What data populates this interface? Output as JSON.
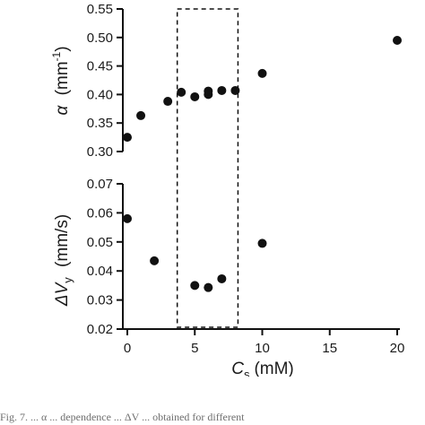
{
  "chart_data": [
    {
      "type": "scatter",
      "panel": "top",
      "ylabel": {
        "symbol": "α",
        "unit": "(mm",
        "exponent": "-1",
        "close": ")"
      },
      "ylim": [
        0.3,
        0.55
      ],
      "yticks": [
        "0.30",
        "0.35",
        "0.40",
        "0.45",
        "0.50",
        "0.55"
      ],
      "x": [
        0,
        1,
        3,
        4,
        5,
        6,
        6,
        7,
        8,
        10,
        20
      ],
      "y": [
        0.325,
        0.363,
        0.388,
        0.404,
        0.396,
        0.4,
        0.406,
        0.407,
        0.407,
        0.437,
        0.495
      ]
    },
    {
      "type": "scatter",
      "panel": "bottom",
      "ylabel": {
        "symbol": "ΔV",
        "subscript": "y",
        "unit": "(mm/s)"
      },
      "ylim": [
        0.02,
        0.07
      ],
      "yticks": [
        "0.02",
        "0.03",
        "0.04",
        "0.05",
        "0.06",
        "0.07"
      ],
      "x": [
        0,
        2,
        5,
        6,
        7,
        10
      ],
      "y": [
        0.058,
        0.0435,
        0.035,
        0.0343,
        0.0373,
        0.0495
      ]
    }
  ],
  "xaxis": {
    "label": {
      "symbol": "C",
      "subscript": "s",
      "unit": "(mM)"
    },
    "xlim": [
      0,
      20
    ],
    "xticks": [
      "0",
      "5",
      "10",
      "15",
      "20"
    ]
  },
  "highlight_box": {
    "x_range": [
      3.7,
      8.2
    ],
    "style": "dashed"
  },
  "colors": {
    "marker": "#111111",
    "axis": "#111111"
  },
  "caption": "Fig. 7. ... α ... dependence ... ΔV ... obtained for different"
}
